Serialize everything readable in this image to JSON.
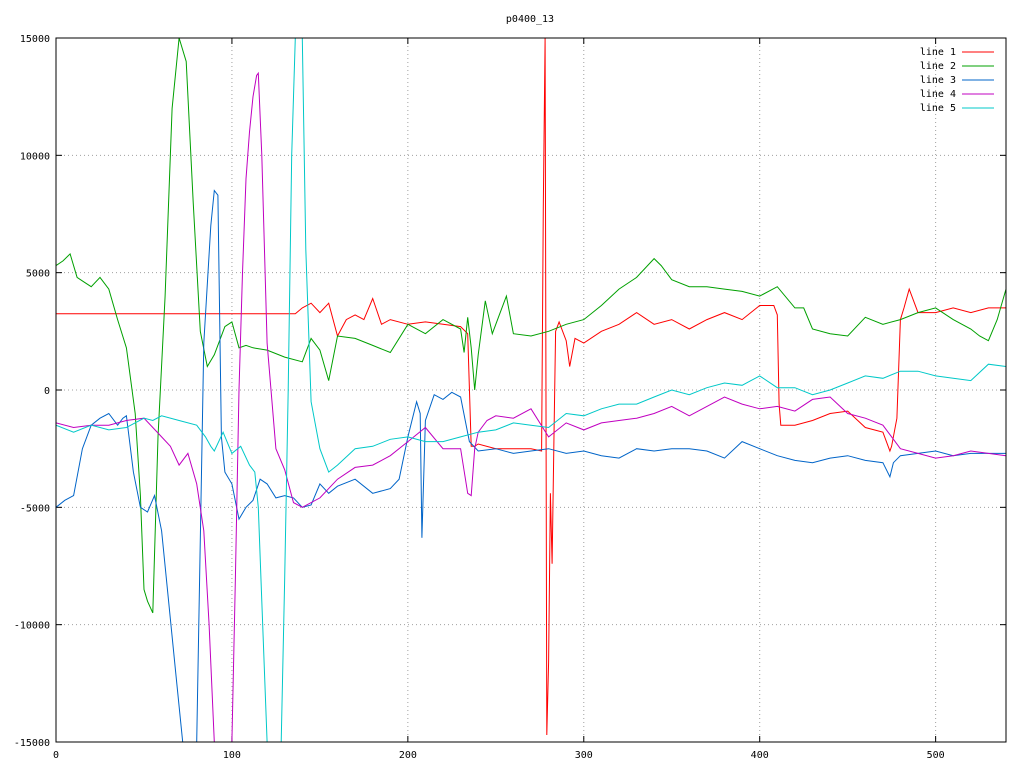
{
  "chart_data": {
    "type": "line",
    "title": "p0400_13",
    "xlabel": "",
    "ylabel": "",
    "xlim": [
      0,
      540
    ],
    "ylim": [
      -15000,
      15000
    ],
    "xticks": [
      0,
      100,
      200,
      300,
      400,
      500
    ],
    "yticks": [
      -15000,
      -10000,
      -5000,
      0,
      5000,
      10000,
      15000
    ],
    "grid": true,
    "legend_position": "top-right",
    "series": [
      {
        "name": "line 1",
        "color": "#ff0000",
        "x": [
          0,
          30,
          60,
          90,
          120,
          136,
          140,
          145,
          150,
          155,
          160,
          165,
          170,
          175,
          180,
          185,
          190,
          200,
          210,
          220,
          230,
          234,
          236,
          238,
          240,
          250,
          260,
          270,
          276,
          277,
          278,
          279,
          280,
          281,
          282,
          283,
          284,
          286,
          290,
          292,
          295,
          300,
          310,
          320,
          330,
          340,
          350,
          360,
          370,
          380,
          390,
          400,
          408,
          410,
          411,
          412,
          420,
          430,
          440,
          450,
          460,
          470,
          474,
          475,
          478,
          480,
          482,
          485,
          490,
          500,
          510,
          520,
          530,
          540
        ],
        "y": [
          3250,
          3250,
          3250,
          3250,
          3250,
          3250,
          3500,
          3700,
          3300,
          3700,
          2300,
          3000,
          3200,
          3000,
          3900,
          2800,
          3000,
          2800,
          2900,
          2800,
          2700,
          2400,
          -2400,
          -2400,
          -2300,
          -2500,
          -2500,
          -2500,
          -2600,
          7800,
          15000,
          -14700,
          -11600,
          -4400,
          -7400,
          -2200,
          2500,
          2900,
          2100,
          1000,
          2200,
          2000,
          2500,
          2800,
          3300,
          2800,
          3000,
          2600,
          3000,
          3300,
          3000,
          3600,
          3600,
          3200,
          -600,
          -1500,
          -1500,
          -1300,
          -1000,
          -900,
          -1600,
          -1800,
          -2600,
          -2400,
          -1200,
          3000,
          3500,
          4300,
          3300,
          3300,
          3500,
          3300,
          3500,
          3500
        ]
      },
      {
        "name": "line 2",
        "color": "#00a000",
        "x": [
          0,
          4,
          8,
          12,
          16,
          20,
          25,
          30,
          35,
          40,
          45,
          48,
          50,
          52,
          55,
          58,
          62,
          66,
          70,
          74,
          78,
          82,
          86,
          90,
          96,
          100,
          104,
          108,
          112,
          120,
          130,
          140,
          145,
          150,
          155,
          160,
          170,
          180,
          190,
          200,
          210,
          220,
          230,
          232,
          234,
          236,
          238,
          240,
          244,
          248,
          252,
          256,
          260,
          270,
          280,
          290,
          300,
          310,
          320,
          330,
          340,
          344,
          350,
          360,
          370,
          380,
          390,
          400,
          410,
          420,
          425,
          430,
          440,
          450,
          460,
          470,
          480,
          490,
          500,
          510,
          520,
          525,
          530,
          535,
          540
        ],
        "y": [
          5300,
          5500,
          5800,
          4800,
          4600,
          4400,
          4800,
          4300,
          3000,
          1800,
          -1000,
          -4500,
          -8500,
          -9000,
          -9500,
          -2000,
          4000,
          12000,
          15000,
          14000,
          8000,
          2500,
          1000,
          1500,
          2700,
          2900,
          1800,
          1900,
          1800,
          1700,
          1400,
          1200,
          2200,
          1700,
          400,
          2300,
          2200,
          1900,
          1600,
          2800,
          2400,
          3000,
          2600,
          1600,
          3100,
          1800,
          0,
          1500,
          3800,
          2400,
          3200,
          4000,
          2400,
          2300,
          2500,
          2800,
          3000,
          3600,
          4300,
          4800,
          5600,
          5300,
          4700,
          4400,
          4400,
          4300,
          4200,
          4000,
          4400,
          3500,
          3500,
          2600,
          2400,
          2300,
          3100,
          2800,
          3000,
          3300,
          3500,
          3000,
          2600,
          2300,
          2100,
          3000,
          4300
        ]
      },
      {
        "name": "line 3",
        "color": "#0064c8",
        "x": [
          0,
          5,
          10,
          15,
          20,
          25,
          30,
          35,
          38,
          40,
          44,
          48,
          52,
          56,
          60,
          64,
          68,
          72,
          76,
          80,
          84,
          88,
          90,
          92,
          94,
          96,
          100,
          104,
          108,
          112,
          116,
          120,
          125,
          130,
          135,
          140,
          145,
          150,
          155,
          160,
          170,
          180,
          190,
          195,
          200,
          205,
          207,
          208,
          210,
          215,
          220,
          225,
          230,
          235,
          240,
          250,
          260,
          270,
          280,
          290,
          300,
          310,
          320,
          330,
          340,
          350,
          360,
          370,
          380,
          390,
          400,
          410,
          420,
          430,
          440,
          450,
          460,
          470,
          474,
          476,
          480,
          490,
          500,
          510,
          520,
          530,
          540
        ],
        "y": [
          -5000,
          -4700,
          -4500,
          -2500,
          -1500,
          -1200,
          -1000,
          -1500,
          -1200,
          -1100,
          -3500,
          -5000,
          -5200,
          -4500,
          -6000,
          -9000,
          -12000,
          -15000,
          -15000,
          -15000,
          2000,
          7000,
          8500,
          8300,
          -2000,
          -3500,
          -4000,
          -5500,
          -5000,
          -4700,
          -3800,
          -4000,
          -4600,
          -4500,
          -4600,
          -5000,
          -4900,
          -4000,
          -4400,
          -4100,
          -3800,
          -4400,
          -4200,
          -3800,
          -2000,
          -500,
          -1000,
          -6300,
          -1300,
          -200,
          -400,
          -100,
          -300,
          -2200,
          -2600,
          -2500,
          -2700,
          -2600,
          -2500,
          -2700,
          -2600,
          -2800,
          -2900,
          -2500,
          -2600,
          -2500,
          -2500,
          -2600,
          -2900,
          -2200,
          -2500,
          -2800,
          -3000,
          -3100,
          -2900,
          -2800,
          -3000,
          -3100,
          -3700,
          -3100,
          -2800,
          -2700,
          -2600,
          -2800,
          -2700,
          -2700,
          -2700
        ]
      },
      {
        "name": "line 4",
        "color": "#c000c0",
        "x": [
          0,
          10,
          20,
          30,
          40,
          50,
          55,
          60,
          65,
          70,
          75,
          80,
          84,
          87,
          90,
          92,
          95,
          98,
          100,
          102,
          104,
          106,
          108,
          110,
          112,
          114,
          115,
          117,
          120,
          125,
          130,
          135,
          140,
          150,
          160,
          170,
          180,
          190,
          200,
          210,
          220,
          230,
          234,
          236,
          238,
          240,
          245,
          250,
          260,
          270,
          280,
          290,
          300,
          310,
          320,
          330,
          340,
          350,
          360,
          370,
          380,
          390,
          400,
          410,
          420,
          430,
          440,
          450,
          460,
          470,
          480,
          490,
          500,
          510,
          520,
          530,
          540
        ],
        "y": [
          -1400,
          -1600,
          -1500,
          -1500,
          -1300,
          -1200,
          -1600,
          -2000,
          -2400,
          -3200,
          -2700,
          -4000,
          -6000,
          -10000,
          -15000,
          -15000,
          -15000,
          -15000,
          -15000,
          -8000,
          0,
          5000,
          9000,
          11000,
          12500,
          13400,
          13500,
          10000,
          2000,
          -2500,
          -3400,
          -4800,
          -5000,
          -4600,
          -3800,
          -3300,
          -3200,
          -2800,
          -2200,
          -1600,
          -2500,
          -2500,
          -4400,
          -4500,
          -2500,
          -1800,
          -1300,
          -1100,
          -1200,
          -800,
          -2000,
          -1400,
          -1700,
          -1400,
          -1300,
          -1200,
          -1000,
          -700,
          -1100,
          -700,
          -300,
          -600,
          -800,
          -700,
          -900,
          -400,
          -300,
          -1000,
          -1200,
          -1500,
          -2500,
          -2700,
          -2900,
          -2800,
          -2600,
          -2700,
          -2800
        ]
      },
      {
        "name": "line 5",
        "color": "#00c8c8",
        "x": [
          0,
          10,
          20,
          30,
          40,
          50,
          55,
          60,
          70,
          80,
          85,
          88,
          90,
          95,
          100,
          105,
          110,
          113,
          115,
          117,
          120,
          122,
          124,
          126,
          128,
          130,
          132,
          134,
          136,
          138,
          140,
          142,
          145,
          150,
          155,
          160,
          170,
          180,
          190,
          200,
          210,
          220,
          230,
          240,
          250,
          260,
          270,
          280,
          290,
          300,
          310,
          320,
          330,
          340,
          350,
          360,
          370,
          380,
          390,
          400,
          410,
          420,
          430,
          440,
          450,
          460,
          470,
          480,
          490,
          500,
          510,
          520,
          530,
          540
        ],
        "y": [
          -1500,
          -1800,
          -1500,
          -1700,
          -1600,
          -1200,
          -1300,
          -1100,
          -1300,
          -1500,
          -2000,
          -2400,
          -2600,
          -1800,
          -2700,
          -2400,
          -3200,
          -3500,
          -5000,
          -9000,
          -15000,
          -15000,
          -15000,
          -15000,
          -15000,
          -8000,
          0,
          10000,
          15000,
          15000,
          15000,
          6000,
          -500,
          -2500,
          -3500,
          -3200,
          -2500,
          -2400,
          -2100,
          -2000,
          -2200,
          -2200,
          -2000,
          -1800,
          -1700,
          -1400,
          -1500,
          -1600,
          -1000,
          -1100,
          -800,
          -600,
          -600,
          -300,
          0,
          -200,
          100,
          300,
          200,
          600,
          100,
          100,
          -200,
          0,
          300,
          600,
          500,
          800,
          800,
          600,
          500,
          400,
          1100,
          1000
        ]
      }
    ]
  }
}
